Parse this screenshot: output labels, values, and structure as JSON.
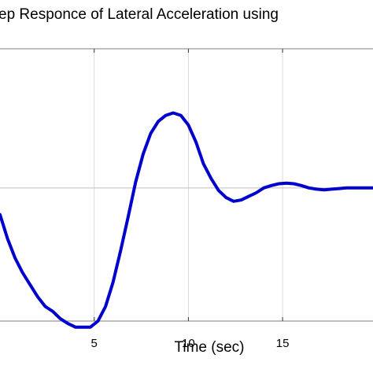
{
  "chart_data": {
    "type": "line",
    "title": "ep Responce of Lateral Acceleration using",
    "xlabel": "Time (sec)",
    "ylabel": "",
    "xlim": [
      0,
      19.8
    ],
    "ylim": [
      -1.1,
      1.15
    ],
    "x_ticks": [
      5,
      10,
      15
    ],
    "x_tick_labels": [
      "5",
      "10",
      "15"
    ],
    "y_gridlines": [
      0
    ],
    "grid": true,
    "series": [
      {
        "color": "#0000cc",
        "x": [
          0,
          0.4,
          0.8,
          1.2,
          1.6,
          2.0,
          2.4,
          2.8,
          3.2,
          3.6,
          4.0,
          4.4,
          4.8,
          5.2,
          5.6,
          6.0,
          6.4,
          6.8,
          7.2,
          7.6,
          8.0,
          8.4,
          8.8,
          9.2,
          9.6,
          10.0,
          10.4,
          10.8,
          11.2,
          11.6,
          12.0,
          12.4,
          12.8,
          13.2,
          13.6,
          14.0,
          14.4,
          14.8,
          15.2,
          15.6,
          16.0,
          16.4,
          16.8,
          17.2,
          17.6,
          18.0,
          18.4,
          18.8,
          19.2,
          19.8
        ],
        "y": [
          -0.22,
          -0.42,
          -0.58,
          -0.7,
          -0.8,
          -0.9,
          -0.98,
          -1.02,
          -1.08,
          -1.12,
          -1.15,
          -1.15,
          -1.15,
          -1.1,
          -0.98,
          -0.78,
          -0.52,
          -0.24,
          0.05,
          0.28,
          0.45,
          0.55,
          0.6,
          0.62,
          0.6,
          0.52,
          0.38,
          0.2,
          0.08,
          -0.02,
          -0.08,
          -0.11,
          -0.1,
          -0.07,
          -0.04,
          0.0,
          0.02,
          0.035,
          0.04,
          0.035,
          0.02,
          0.0,
          -0.01,
          -0.015,
          -0.01,
          -0.005,
          0.0,
          0.0,
          0.0,
          0.0
        ]
      }
    ]
  }
}
